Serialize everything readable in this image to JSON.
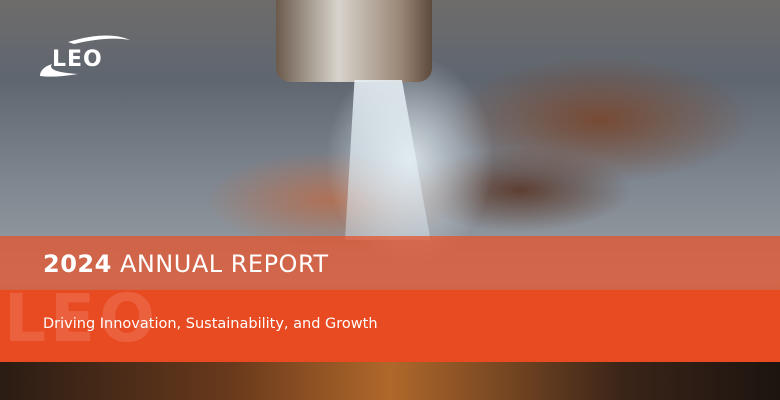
{
  "brand": {
    "logo_text": "LEO",
    "watermark_text": "LEO"
  },
  "banner": {
    "title_year": "2024",
    "title_rest": "ANNUAL REPORT",
    "subtitle": "Driving Innovation, Sustainability, and Growth"
  },
  "colors": {
    "accent": "#e84a22",
    "text": "#ffffff"
  }
}
